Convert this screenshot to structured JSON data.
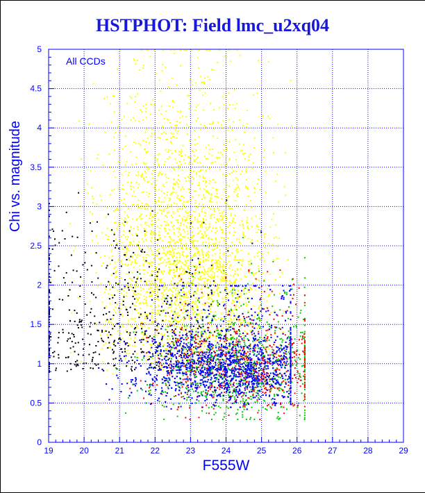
{
  "chart_data": {
    "type": "scatter",
    "title": "HSTPHOT: Field lmc_u2xq04",
    "xlabel": "F555W",
    "ylabel": "Chi vs. magnitude",
    "annotation": "All CCDs",
    "xlim": [
      19,
      29
    ],
    "ylim": [
      0,
      5
    ],
    "x_ticks": [
      "19",
      "20",
      "21",
      "22",
      "23",
      "24",
      "25",
      "26",
      "27",
      "28",
      "29"
    ],
    "y_ticks": [
      "0",
      "0.5",
      "1",
      "1.5",
      "2",
      "2.5",
      "3",
      "3.5",
      "4",
      "4.5",
      "5"
    ],
    "grid": true,
    "legend": "none",
    "series": [
      {
        "color": "#ffff00",
        "x_range": [
          19.2,
          26.5
        ],
        "y_range": [
          0.8,
          5
        ],
        "peak_x": 22.8
      },
      {
        "color": "#000000",
        "x_range": [
          19,
          25.5
        ],
        "y_range": [
          0.3,
          4.6
        ],
        "peak_x": 21
      },
      {
        "color": "#00c800",
        "x_range": [
          19,
          26.2
        ],
        "y_range": [
          0.3,
          2.7
        ],
        "peak_x": 24.3
      },
      {
        "color": "#ff0000",
        "x_range": [
          19,
          26.2
        ],
        "y_range": [
          0.3,
          2.2
        ],
        "peak_x": 24.5
      },
      {
        "color": "#0000ff",
        "x_range": [
          19,
          25.8
        ],
        "y_range": [
          0.3,
          2.0
        ],
        "peak_x": 24.1
      }
    ]
  },
  "colors": {
    "axis": "#0000ff",
    "text": "#0000ff",
    "title": "#1818d8",
    "grid": "#0000ff"
  }
}
